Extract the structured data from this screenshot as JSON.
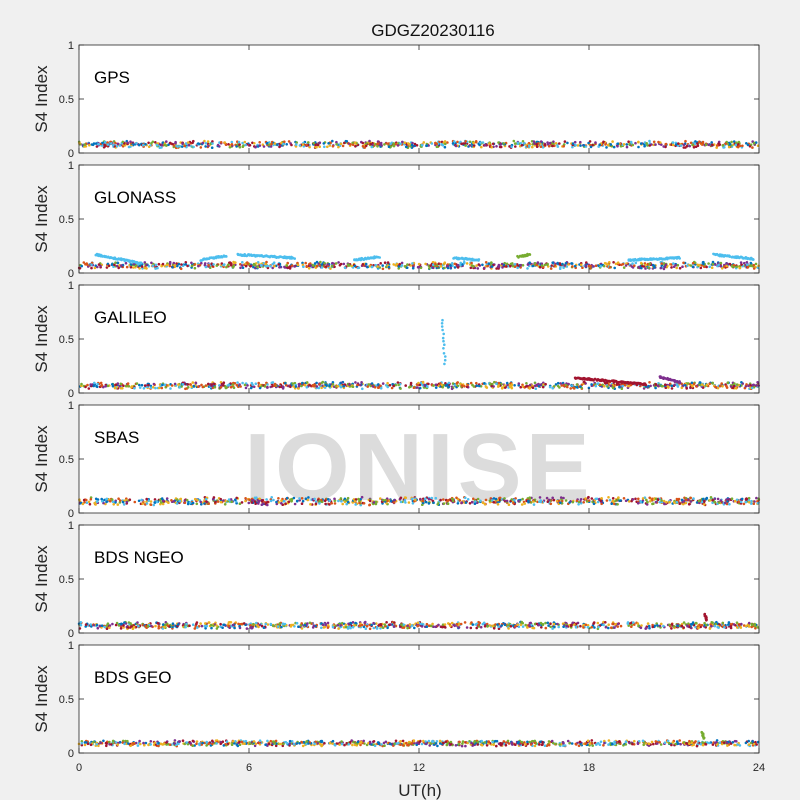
{
  "title": "GDGZ20230116",
  "watermark": "IONISE",
  "chart_data": {
    "type": "scatter",
    "xlabel": "UT(h)",
    "ylabel": "S4 Index",
    "xlim": [
      0,
      24
    ],
    "ylim": [
      0,
      1
    ],
    "xticks": [
      0,
      6,
      12,
      18,
      24
    ],
    "yticks": [
      0,
      0.5,
      1
    ],
    "ytick_labels": [
      "0",
      "0.5",
      "1"
    ],
    "grid": false,
    "colors": [
      "#0072BD",
      "#D95319",
      "#EDB120",
      "#7E2F8E",
      "#77AC30",
      "#4DBEEE",
      "#A2142F"
    ],
    "panels": [
      {
        "label": "GPS",
        "baseline": 0.08,
        "spread": 0.04,
        "features": []
      },
      {
        "label": "GLONASS",
        "baseline": 0.07,
        "spread": 0.04,
        "features": [
          {
            "x0": 0.6,
            "x1": 2.2,
            "y0": 0.17,
            "y1": 0.09,
            "series": 5
          },
          {
            "x0": 4.3,
            "x1": 5.2,
            "y0": 0.12,
            "y1": 0.16,
            "series": 5
          },
          {
            "x0": 5.6,
            "x1": 7.6,
            "y0": 0.17,
            "y1": 0.14,
            "series": 5
          },
          {
            "x0": 9.7,
            "x1": 10.6,
            "y0": 0.12,
            "y1": 0.15,
            "series": 5
          },
          {
            "x0": 13.2,
            "x1": 14.1,
            "y0": 0.14,
            "y1": 0.12,
            "series": 5
          },
          {
            "x0": 15.5,
            "x1": 15.9,
            "y0": 0.15,
            "y1": 0.17,
            "series": 4
          },
          {
            "x0": 19.4,
            "x1": 21.2,
            "y0": 0.12,
            "y1": 0.14,
            "series": 5
          },
          {
            "x0": 22.4,
            "x1": 23.8,
            "y0": 0.17,
            "y1": 0.13,
            "series": 5
          }
        ]
      },
      {
        "label": "GALILEO",
        "baseline": 0.07,
        "spread": 0.04,
        "features": [
          {
            "x0": 12.82,
            "x1": 12.92,
            "y0": 0.68,
            "y1": 0.27,
            "series": 5
          },
          {
            "x0": 17.5,
            "x1": 20.0,
            "y0": 0.14,
            "y1": 0.08,
            "series": 6
          },
          {
            "x0": 20.5,
            "x1": 21.2,
            "y0": 0.15,
            "y1": 0.1,
            "series": 3
          }
        ]
      },
      {
        "label": "SBAS",
        "baseline": 0.11,
        "spread": 0.05,
        "features": []
      },
      {
        "label": "BDS NGEO",
        "baseline": 0.07,
        "spread": 0.04,
        "features": [
          {
            "x0": 22.1,
            "x1": 22.15,
            "y0": 0.17,
            "y1": 0.12,
            "series": 6
          }
        ]
      },
      {
        "label": "BDS GEO",
        "baseline": 0.09,
        "spread": 0.03,
        "features": [
          {
            "x0": 22.0,
            "x1": 22.05,
            "y0": 0.19,
            "y1": 0.14,
            "series": 4
          }
        ]
      }
    ]
  }
}
